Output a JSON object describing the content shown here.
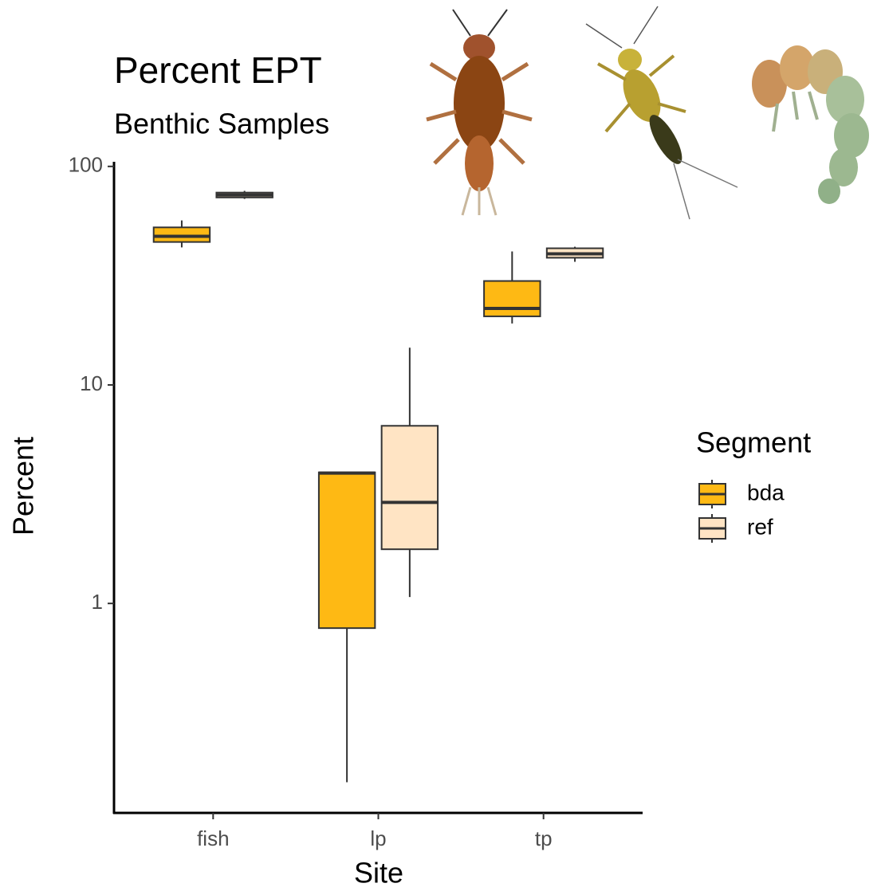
{
  "chart_data": {
    "type": "box",
    "title": "Percent EPT",
    "subtitle": "Benthic Samples",
    "x_label": "Site",
    "y_label": "Percent",
    "categories": [
      "fish",
      "lp",
      "tp"
    ],
    "log_scale": true,
    "ylim": [
      0.11,
      105
    ],
    "yticks": [
      1,
      10,
      100
    ],
    "legend_title": "Segment",
    "legend_position": "right",
    "series": [
      {
        "name": "bda",
        "color": "#FEB914",
        "values": [
          {
            "min": 42.6,
            "q1": 45.1,
            "median": 47.9,
            "q3": 52.6,
            "max": 56.6
          },
          {
            "min": 0.152,
            "q1": 0.771,
            "median": 3.95,
            "q3": 3.98,
            "max": 4.0
          },
          {
            "min": 19.1,
            "q1": 20.6,
            "median": 22.4,
            "q3": 29.9,
            "max": 40.8
          }
        ]
      },
      {
        "name": "ref",
        "color": "#FFE4C4",
        "values": [
          {
            "min": 71.0,
            "q1": 72.1,
            "median": 74.0,
            "q3": 75.9,
            "max": 77.3
          },
          {
            "min": 1.07,
            "q1": 1.77,
            "median": 2.9,
            "q3": 6.5,
            "max": 14.8
          },
          {
            "min": 36.6,
            "q1": 38.2,
            "median": 39.8,
            "q3": 42.2,
            "max": 42.9
          }
        ]
      }
    ]
  }
}
